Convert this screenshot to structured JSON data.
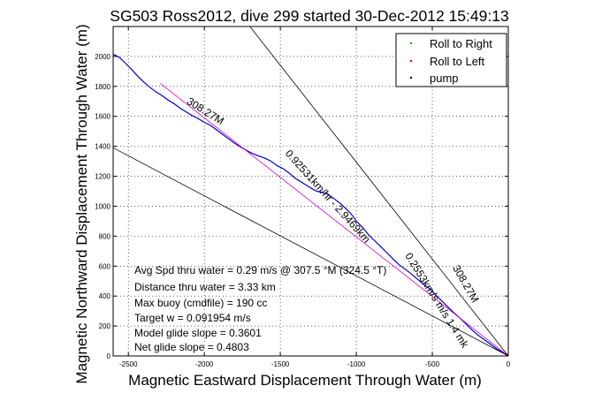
{
  "figure": {
    "title": "SG503 Ross2012, dive 299 started 30-Dec-2012 15:49:13",
    "xlabel": "Magnetic Eastward Displacement Through Water (m)",
    "ylabel": "Magnetic Northward Displacement Through Water (m)"
  },
  "legend": {
    "placement": "top-right",
    "entries": [
      {
        "label": "Roll to Right",
        "color": "#00b000"
      },
      {
        "label": "Roll to Left",
        "color": "#e00000"
      },
      {
        "label": "pump",
        "color": "#000000"
      }
    ]
  },
  "stats": [
    "Avg Spd thru water = 0.29 m/s @ 307.5 °M (324.5 °T)",
    "Distance thru water = 3.33 km",
    "Max buoy (cmdfile) = 190 cc",
    "Target w = 0.091954 m/s",
    "Model glide slope = 0.3601",
    "Net glide slope = 0.4803"
  ],
  "annotations": [
    {
      "text": "308.27M",
      "at": [
        -2005,
        1615
      ],
      "angle": 32
    },
    {
      "text": "0.92531km/hr - 2.9469km",
      "at": [
        -1205,
        1050
      ],
      "angle": 48
    },
    {
      "text": "0.2553km/s m/s 1.4 mk",
      "at": [
        -490,
        360
      ],
      "angle": 58
    },
    {
      "text": "308.27M",
      "at": [
        -300,
        470
      ],
      "angle": 60
    }
  ],
  "chart_data": {
    "type": "line",
    "title": "SG503 Ross2012, dive 299 started 30-Dec-2012 15:49:13",
    "xlabel": "Magnetic Eastward Displacement Through Water (m)",
    "ylabel": "Magnetic Northward Displacement Through Water (m)",
    "xlim": [
      -2600,
      0
    ],
    "ylim": [
      0,
      2200
    ],
    "xticks": [
      -2500,
      -2000,
      -1500,
      -1000,
      -500,
      0
    ],
    "yticks": [
      0,
      200,
      400,
      600,
      800,
      1000,
      1200,
      1400,
      1600,
      1800,
      2000
    ],
    "grid": true,
    "legend_position": "top-right",
    "series": [
      {
        "name": "",
        "color": "#0000cc",
        "style": "solid",
        "x": [
          -2600,
          -2560,
          -2520,
          -2480,
          -2440,
          -2400,
          -2360,
          -2320,
          -2280,
          -2240,
          -2200,
          -2160,
          -2120,
          -2080,
          -2040,
          -2000,
          -1960,
          -1920,
          -1880,
          -1840,
          -1800,
          -1760,
          -1720,
          -1680,
          -1640,
          -1600,
          -1560,
          -1520,
          -1480,
          -1440,
          -1400,
          -1360,
          -1320,
          -1280,
          -1260,
          -1240,
          -1220,
          -1200,
          -1180,
          -1160,
          -1140,
          -1120,
          -1100,
          -1080,
          -1060,
          -1040,
          -1020,
          -1000,
          -960,
          -920,
          -880,
          -840,
          -800,
          -760,
          -720,
          -680,
          -640,
          -600,
          -560,
          -520,
          -480,
          -440,
          -400,
          -360,
          -320,
          -280,
          -240,
          -200,
          -160,
          -120,
          -80,
          -40,
          0
        ],
        "y": [
          2015,
          1995,
          1955,
          1915,
          1870,
          1830,
          1795,
          1765,
          1740,
          1710,
          1685,
          1655,
          1630,
          1605,
          1585,
          1560,
          1540,
          1510,
          1480,
          1450,
          1420,
          1395,
          1370,
          1350,
          1335,
          1320,
          1300,
          1270,
          1250,
          1220,
          1185,
          1160,
          1135,
          1110,
          1100,
          1095,
          1090,
          1085,
          1075,
          1060,
          1045,
          1030,
          1015,
          995,
          975,
          955,
          930,
          900,
          860,
          810,
          770,
          730,
          690,
          650,
          610,
          580,
          550,
          515,
          480,
          450,
          410,
          370,
          330,
          290,
          255,
          215,
          175,
          140,
          110,
          80,
          50,
          25,
          0
        ]
      },
      {
        "name": "",
        "color": "#cc00cc",
        "style": "solid",
        "x": [
          -2290,
          0
        ],
        "y": [
          1820,
          0
        ]
      },
      {
        "name": "",
        "color": "#000000",
        "style": "solid",
        "x": [
          -2600,
          0
        ],
        "y": [
          1390,
          0
        ]
      },
      {
        "name": "",
        "color": "#000000",
        "style": "solid",
        "x": [
          -1700,
          0
        ],
        "y": [
          2200,
          0
        ]
      }
    ]
  }
}
